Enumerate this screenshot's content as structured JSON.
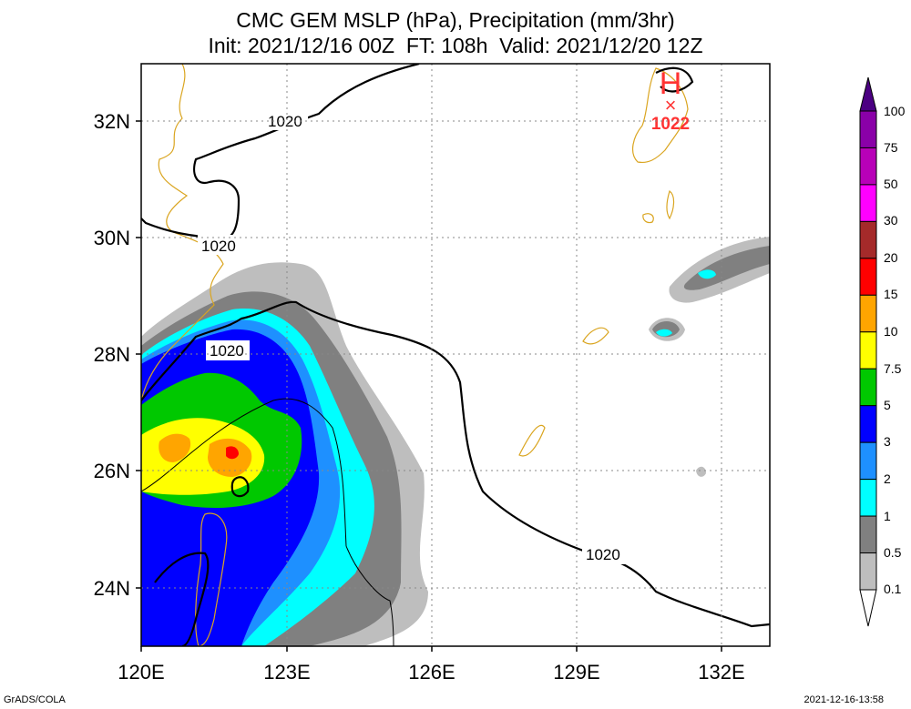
{
  "title": {
    "line1": "CMC GEM MSLP (hPa), Precipitation (mm/3hr)",
    "line2": "Init: 2021/12/16 00Z  FT: 108h  Valid: 2021/12/20 12Z"
  },
  "axes": {
    "lon_ticks": [
      "120E",
      "123E",
      "126E",
      "129E",
      "132E"
    ],
    "lat_ticks": [
      "32N",
      "30N",
      "28N",
      "26N",
      "24N"
    ],
    "lon_range": [
      120,
      133
    ],
    "lat_range": [
      23,
      33
    ]
  },
  "high_pressure": {
    "symbol": "H",
    "marker": "×",
    "value": "1022",
    "lon": 130.8,
    "lat": 32.3
  },
  "isobar_labels": [
    "1020",
    "1020",
    "1020",
    "1020"
  ],
  "colorbar": {
    "labels": [
      "100",
      "75",
      "50",
      "30",
      "20",
      "15",
      "10",
      "7.5",
      "5",
      "3",
      "2",
      "1",
      "0.5",
      "0.1"
    ],
    "colors": [
      "#8a00a8",
      "#b800b8",
      "#ff00ff",
      "#a52a2a",
      "#ff0000",
      "#ffa500",
      "#ffff00",
      "#00c800",
      "#0000ff",
      "#1e90ff",
      "#00ffff",
      "#808080",
      "#bebebe"
    ]
  },
  "footer": {
    "left": "GrADS/COLA",
    "right": "2021-12-16-13:58"
  }
}
